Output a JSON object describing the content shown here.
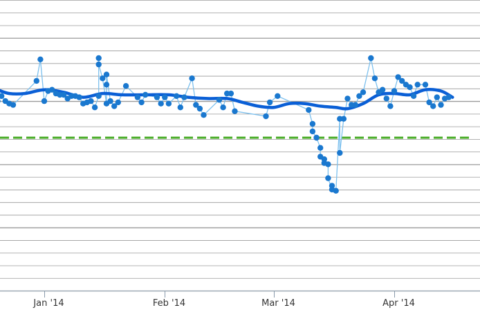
{
  "chart_data": {
    "type": "line",
    "title": "",
    "xlabel": "",
    "ylabel": "",
    "grid": true,
    "x_ticks": [
      {
        "label": "Jan '14",
        "date": "2014-01-01"
      },
      {
        "label": "Feb '14",
        "date": "2014-02-01"
      },
      {
        "label": "Mar '14",
        "date": "2014-03-01"
      },
      {
        "label": "Apr '14",
        "date": "2014-04-01"
      }
    ],
    "xlim": [
      "2013-12-20",
      "2014-04-21"
    ],
    "ylim": [
      0,
      23
    ],
    "reference_line": {
      "value": 12.1,
      "color": "#44aa22",
      "style": "dashed"
    },
    "colors": {
      "points": "#1a78cf",
      "raw_line": "#7cc0ee",
      "trend": "#0a5fd6",
      "grid": "#9a9a9a"
    },
    "series": [
      {
        "role": "observations",
        "points": [
          {
            "x": "2013-12-20",
            "y": 15.0
          },
          {
            "x": "2013-12-21",
            "y": 15.4
          },
          {
            "x": "2013-12-22",
            "y": 15.0
          },
          {
            "x": "2013-12-23",
            "y": 14.8
          },
          {
            "x": "2013-12-24",
            "y": 14.7
          },
          {
            "x": "2013-12-30",
            "y": 16.6
          },
          {
            "x": "2013-12-31",
            "y": 18.3
          },
          {
            "x": "2014-01-01",
            "y": 15.0
          },
          {
            "x": "2014-01-02",
            "y": 15.8
          },
          {
            "x": "2014-01-03",
            "y": 15.9
          },
          {
            "x": "2014-01-04",
            "y": 15.6
          },
          {
            "x": "2014-01-05",
            "y": 15.5
          },
          {
            "x": "2014-01-06",
            "y": 15.5
          },
          {
            "x": "2014-01-07",
            "y": 15.2
          },
          {
            "x": "2014-01-08",
            "y": 15.4
          },
          {
            "x": "2014-01-09",
            "y": 15.4
          },
          {
            "x": "2014-01-10",
            "y": 15.3
          },
          {
            "x": "2014-01-11",
            "y": 14.8
          },
          {
            "x": "2014-01-12",
            "y": 14.9
          },
          {
            "x": "2014-01-13",
            "y": 15.0
          },
          {
            "x": "2014-01-14",
            "y": 14.5
          },
          {
            "x": "2014-01-15",
            "y": 15.4
          },
          {
            "x": "2014-01-15",
            "y": 18.4
          },
          {
            "x": "2014-01-15",
            "y": 17.9
          },
          {
            "x": "2014-01-16",
            "y": 16.8
          },
          {
            "x": "2014-01-17",
            "y": 14.8
          },
          {
            "x": "2014-01-17",
            "y": 16.3
          },
          {
            "x": "2014-01-17",
            "y": 17.1
          },
          {
            "x": "2014-01-18",
            "y": 15.0
          },
          {
            "x": "2014-01-19",
            "y": 14.6
          },
          {
            "x": "2014-01-20",
            "y": 14.9
          },
          {
            "x": "2014-01-22",
            "y": 16.2
          },
          {
            "x": "2014-01-25",
            "y": 15.3
          },
          {
            "x": "2014-01-26",
            "y": 14.9
          },
          {
            "x": "2014-01-27",
            "y": 15.5
          },
          {
            "x": "2014-01-30",
            "y": 15.3
          },
          {
            "x": "2014-01-31",
            "y": 14.8
          },
          {
            "x": "2014-02-01",
            "y": 15.3
          },
          {
            "x": "2014-02-02",
            "y": 14.8
          },
          {
            "x": "2014-02-04",
            "y": 15.4
          },
          {
            "x": "2014-02-05",
            "y": 14.5
          },
          {
            "x": "2014-02-06",
            "y": 15.3
          },
          {
            "x": "2014-02-08",
            "y": 16.8
          },
          {
            "x": "2014-02-09",
            "y": 14.7
          },
          {
            "x": "2014-02-10",
            "y": 14.4
          },
          {
            "x": "2014-02-11",
            "y": 13.9
          },
          {
            "x": "2014-02-15",
            "y": 15.1
          },
          {
            "x": "2014-02-16",
            "y": 14.5
          },
          {
            "x": "2014-02-17",
            "y": 15.6
          },
          {
            "x": "2014-02-18",
            "y": 15.6
          },
          {
            "x": "2014-02-19",
            "y": 14.2
          },
          {
            "x": "2014-02-27",
            "y": 13.8
          },
          {
            "x": "2014-02-28",
            "y": 14.9
          },
          {
            "x": "2014-03-02",
            "y": 15.4
          },
          {
            "x": "2014-03-10",
            "y": 14.3
          },
          {
            "x": "2014-03-11",
            "y": 13.2
          },
          {
            "x": "2014-03-11",
            "y": 12.6
          },
          {
            "x": "2014-03-12",
            "y": 12.1
          },
          {
            "x": "2014-03-12",
            "y": 12.1
          },
          {
            "x": "2014-03-13",
            "y": 11.3
          },
          {
            "x": "2014-03-13",
            "y": 10.6
          },
          {
            "x": "2014-03-14",
            "y": 10.1
          },
          {
            "x": "2014-03-14",
            "y": 10.4
          },
          {
            "x": "2014-03-15",
            "y": 10.0
          },
          {
            "x": "2014-03-15",
            "y": 8.9
          },
          {
            "x": "2014-03-16",
            "y": 8.0
          },
          {
            "x": "2014-03-16",
            "y": 8.3
          },
          {
            "x": "2014-03-17",
            "y": 7.9
          },
          {
            "x": "2014-03-18",
            "y": 13.6
          },
          {
            "x": "2014-03-18",
            "y": 10.9
          },
          {
            "x": "2014-03-19",
            "y": 13.6
          },
          {
            "x": "2014-03-20",
            "y": 15.2
          },
          {
            "x": "2014-03-21",
            "y": 14.7
          },
          {
            "x": "2014-03-22",
            "y": 14.7
          },
          {
            "x": "2014-03-23",
            "y": 15.4
          },
          {
            "x": "2014-03-24",
            "y": 15.7
          },
          {
            "x": "2014-03-26",
            "y": 18.4
          },
          {
            "x": "2014-03-27",
            "y": 16.8
          },
          {
            "x": "2014-03-28",
            "y": 15.7
          },
          {
            "x": "2014-03-29",
            "y": 15.9
          },
          {
            "x": "2014-03-30",
            "y": 15.2
          },
          {
            "x": "2014-03-31",
            "y": 14.6
          },
          {
            "x": "2014-04-01",
            "y": 15.8
          },
          {
            "x": "2014-04-02",
            "y": 16.9
          },
          {
            "x": "2014-04-03",
            "y": 16.6
          },
          {
            "x": "2014-04-04",
            "y": 16.3
          },
          {
            "x": "2014-04-05",
            "y": 16.1
          },
          {
            "x": "2014-04-06",
            "y": 15.4
          },
          {
            "x": "2014-04-07",
            "y": 16.3
          },
          {
            "x": "2014-04-09",
            "y": 16.3
          },
          {
            "x": "2014-04-10",
            "y": 14.9
          },
          {
            "x": "2014-04-11",
            "y": 14.6
          },
          {
            "x": "2014-04-12",
            "y": 15.3
          },
          {
            "x": "2014-04-13",
            "y": 14.7
          },
          {
            "x": "2014-04-14",
            "y": 15.2
          },
          {
            "x": "2014-04-15",
            "y": 15.3
          }
        ]
      },
      {
        "role": "trend",
        "points": [
          {
            "x": "2013-12-20",
            "y": 15.9
          },
          {
            "x": "2013-12-23",
            "y": 15.6
          },
          {
            "x": "2013-12-27",
            "y": 15.6
          },
          {
            "x": "2014-01-01",
            "y": 15.9
          },
          {
            "x": "2014-01-06",
            "y": 15.7
          },
          {
            "x": "2014-01-11",
            "y": 15.3
          },
          {
            "x": "2014-01-16",
            "y": 15.6
          },
          {
            "x": "2014-01-21",
            "y": 15.5
          },
          {
            "x": "2014-01-27",
            "y": 15.5
          },
          {
            "x": "2014-02-02",
            "y": 15.5
          },
          {
            "x": "2014-02-07",
            "y": 15.3
          },
          {
            "x": "2014-02-12",
            "y": 15.2
          },
          {
            "x": "2014-02-17",
            "y": 15.2
          },
          {
            "x": "2014-02-21",
            "y": 14.9
          },
          {
            "x": "2014-02-25",
            "y": 14.6
          },
          {
            "x": "2014-03-01",
            "y": 14.5
          },
          {
            "x": "2014-03-05",
            "y": 14.8
          },
          {
            "x": "2014-03-09",
            "y": 14.8
          },
          {
            "x": "2014-03-13",
            "y": 14.6
          },
          {
            "x": "2014-03-17",
            "y": 14.5
          },
          {
            "x": "2014-03-20",
            "y": 14.4
          },
          {
            "x": "2014-03-24",
            "y": 14.8
          },
          {
            "x": "2014-03-28",
            "y": 15.5
          },
          {
            "x": "2014-04-01",
            "y": 15.6
          },
          {
            "x": "2014-04-05",
            "y": 15.5
          },
          {
            "x": "2014-04-09",
            "y": 15.9
          },
          {
            "x": "2014-04-13",
            "y": 15.8
          },
          {
            "x": "2014-04-16",
            "y": 15.3
          }
        ]
      }
    ]
  }
}
